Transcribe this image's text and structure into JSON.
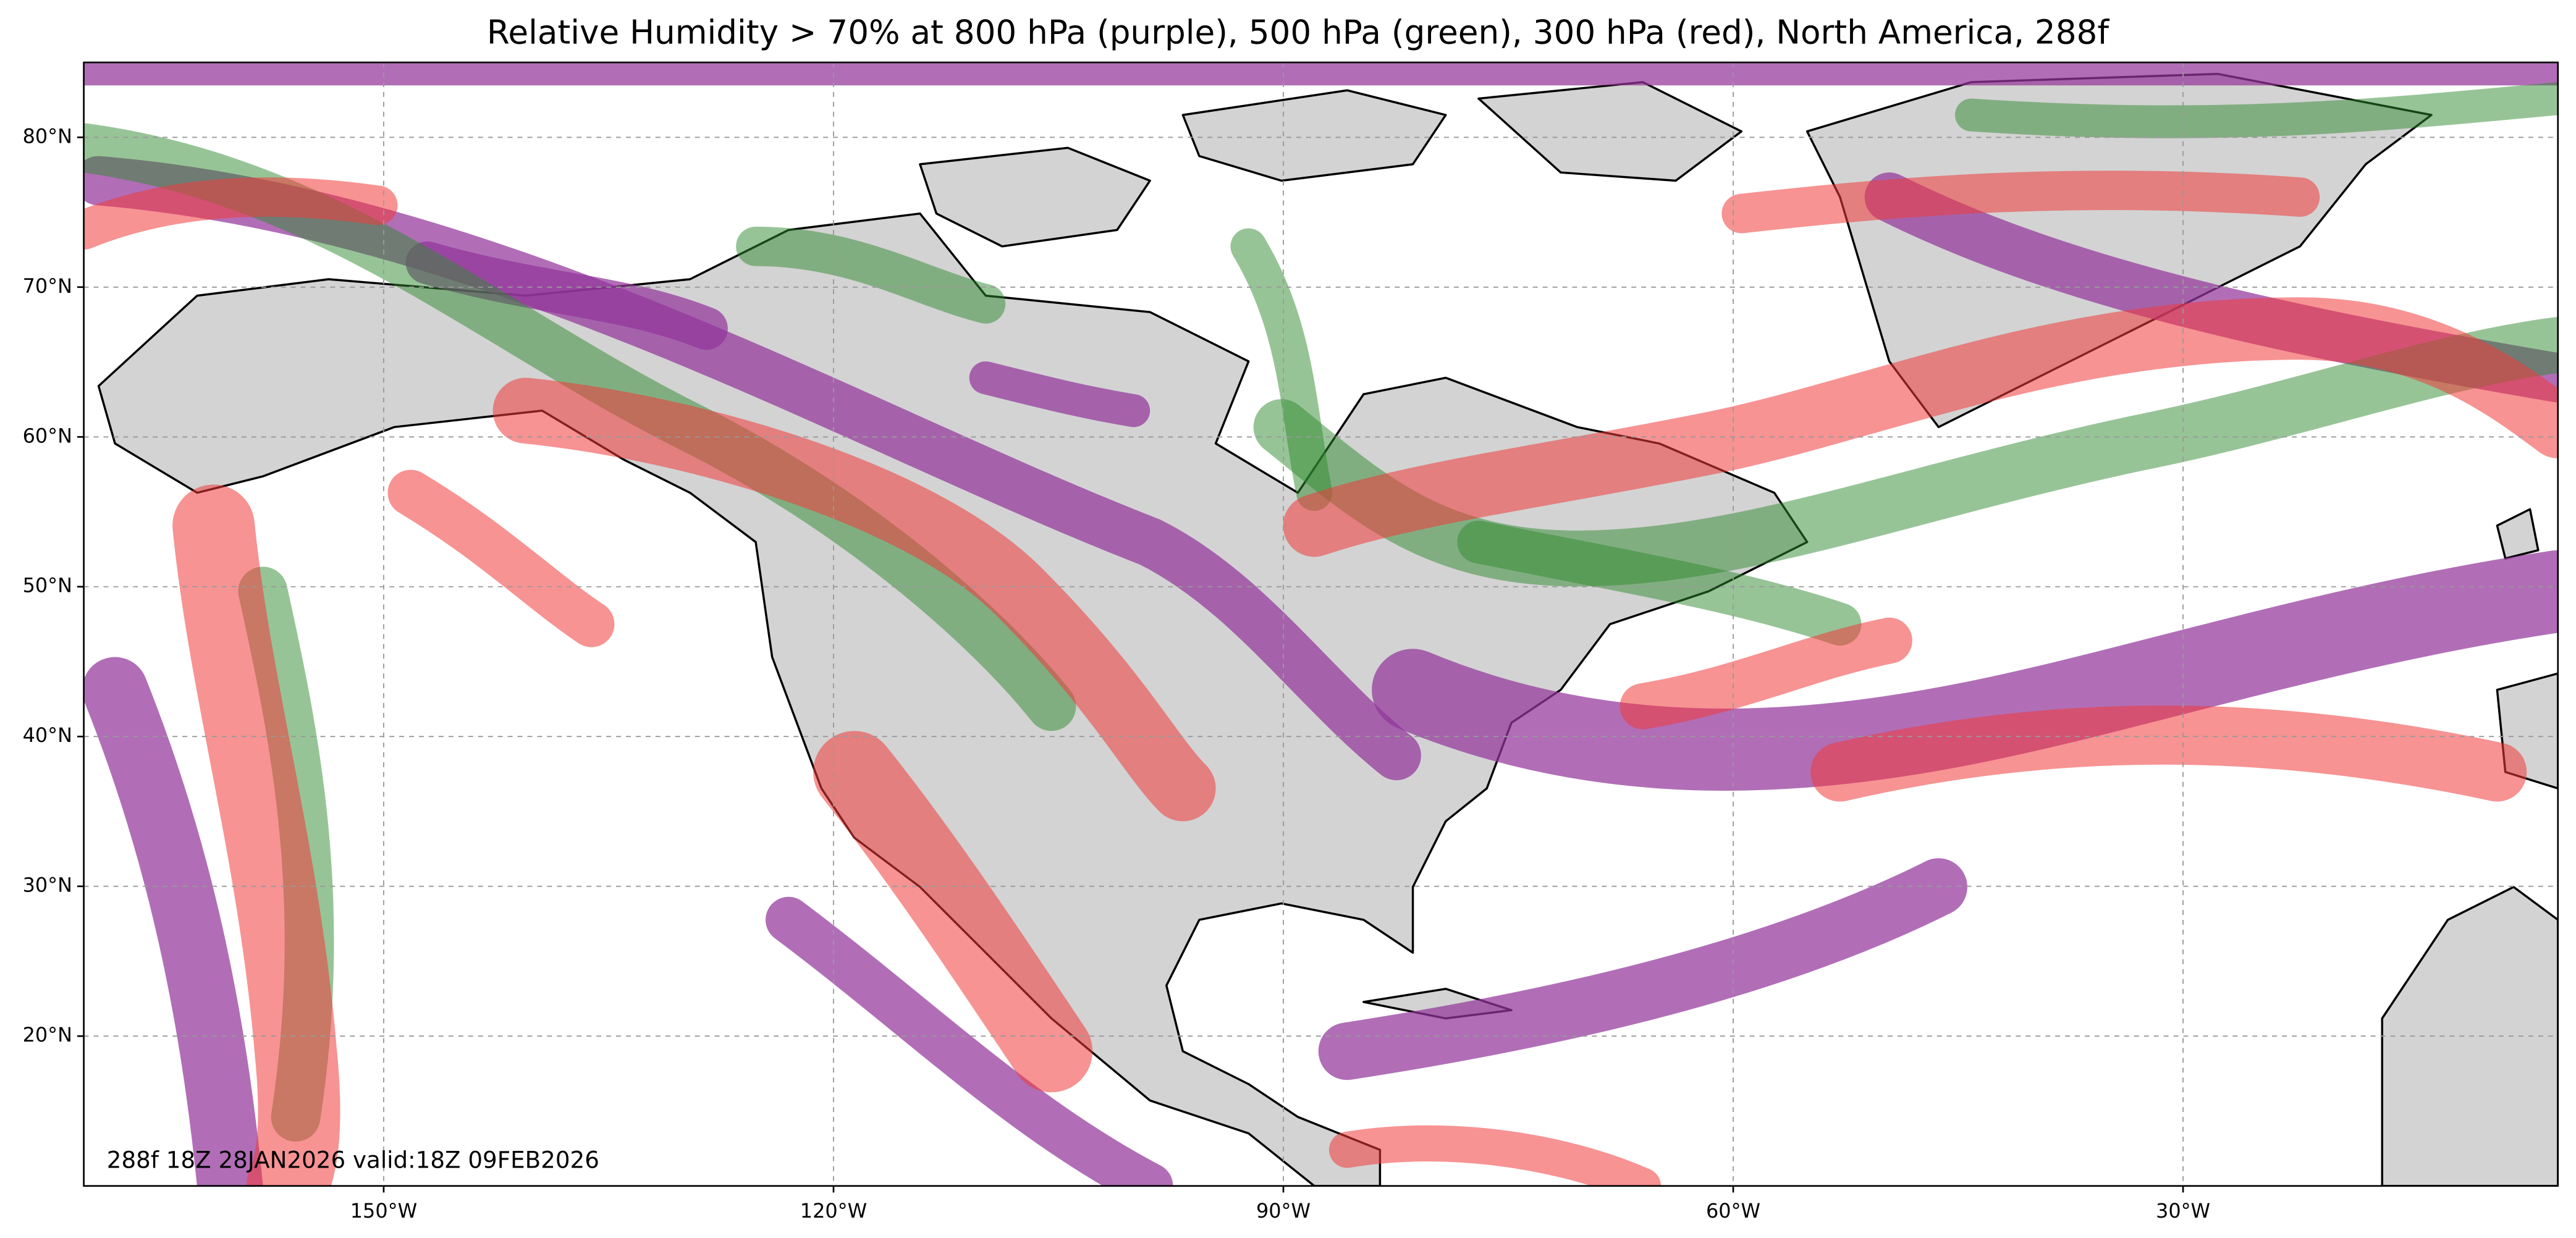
{
  "map": {
    "title": "Relative Humidity > 70% at 800 hPa (purple), 500 hPa (green), 300 hPa (red), North America, 288f",
    "footer": "288f 18Z 28JAN2026 valid:18Z 09FEB2026",
    "xlim": [
      -170,
      -5
    ],
    "ylim": [
      10,
      85
    ],
    "xticks": [
      {
        "value": -150,
        "label": "150°W"
      },
      {
        "value": -120,
        "label": "120°W"
      },
      {
        "value": -90,
        "label": "90°W"
      },
      {
        "value": -60,
        "label": "60°W"
      },
      {
        "value": -30,
        "label": "30°W"
      }
    ],
    "yticks": [
      {
        "value": 20,
        "label": "20°N"
      },
      {
        "value": 30,
        "label": "30°N"
      },
      {
        "value": 40,
        "label": "40°N"
      },
      {
        "value": 50,
        "label": "50°N"
      },
      {
        "value": 60,
        "label": "60°N"
      },
      {
        "value": 70,
        "label": "70°N"
      },
      {
        "value": 80,
        "label": "80°N"
      }
    ]
  }
}
